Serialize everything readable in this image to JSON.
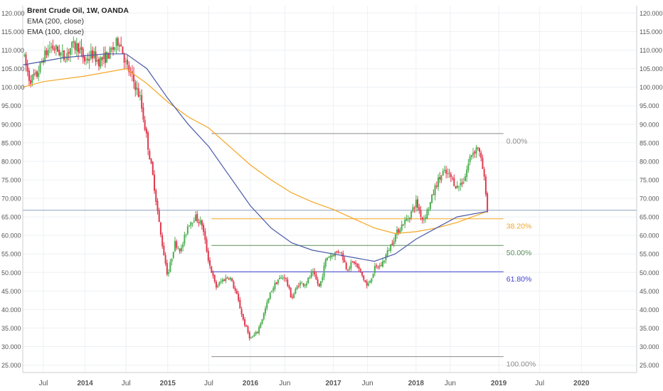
{
  "legend": {
    "title": "Brent Crude Oil, 1W, OANDA",
    "ema200": "EMA (200, close)",
    "ema100": "EMA (100, close)"
  },
  "chart_data": {
    "type": "candlestick",
    "title": "Brent Crude Oil, 1W, OANDA",
    "ylim": [
      23,
      122
    ],
    "yticks": [
      25,
      30,
      35,
      40,
      45,
      50,
      55,
      60,
      65,
      70,
      75,
      80,
      85,
      90,
      95,
      100,
      105,
      110,
      115,
      120
    ],
    "ytick_labels": [
      "25.000",
      "30.000",
      "35.000",
      "40.000",
      "45.000",
      "50.000",
      "55.000",
      "60.000",
      "65.000",
      "70.000",
      "75.000",
      "80.000",
      "85.000",
      "90.000",
      "95.000",
      "100.000",
      "105.000",
      "110.000",
      "115.000",
      "120.000"
    ],
    "xlim": [
      "2013-04-01",
      "2020-09-01"
    ],
    "xticks": [
      {
        "date": "2013-07-01",
        "label": "Jul"
      },
      {
        "date": "2014-01-01",
        "label": "2014"
      },
      {
        "date": "2014-07-01",
        "label": "Jul"
      },
      {
        "date": "2015-01-01",
        "label": "2015"
      },
      {
        "date": "2015-07-01",
        "label": "Jul"
      },
      {
        "date": "2016-01-01",
        "label": "2016"
      },
      {
        "date": "2016-06-01",
        "label": "Jun"
      },
      {
        "date": "2017-01-01",
        "label": "2017"
      },
      {
        "date": "2017-06-01",
        "label": "Jun"
      },
      {
        "date": "2018-01-01",
        "label": "2018"
      },
      {
        "date": "2018-06-01",
        "label": "Jun"
      },
      {
        "date": "2019-01-01",
        "label": "2019"
      },
      {
        "date": "2019-07-01",
        "label": "Jul"
      },
      {
        "date": "2020-01-01",
        "label": "2020"
      }
    ],
    "price_path": [
      [
        "2013-04-01",
        109
      ],
      [
        "2013-05-01",
        102
      ],
      [
        "2013-06-01",
        103
      ],
      [
        "2013-07-01",
        108
      ],
      [
        "2013-08-01",
        111
      ],
      [
        "2013-09-01",
        110
      ],
      [
        "2013-10-01",
        108
      ],
      [
        "2013-11-01",
        111
      ],
      [
        "2013-12-01",
        111
      ],
      [
        "2014-01-01",
        107
      ],
      [
        "2014-02-01",
        109
      ],
      [
        "2014-03-01",
        107
      ],
      [
        "2014-04-01",
        108
      ],
      [
        "2014-05-01",
        110
      ],
      [
        "2014-06-01",
        113
      ],
      [
        "2014-07-01",
        106
      ],
      [
        "2014-08-01",
        102
      ],
      [
        "2014-09-01",
        97
      ],
      [
        "2014-10-01",
        86
      ],
      [
        "2014-11-01",
        74
      ],
      [
        "2014-12-01",
        60
      ],
      [
        "2015-01-01",
        49
      ],
      [
        "2015-02-01",
        58
      ],
      [
        "2015-03-01",
        56
      ],
      [
        "2015-04-01",
        63
      ],
      [
        "2015-05-01",
        65
      ],
      [
        "2015-06-01",
        63
      ],
      [
        "2015-07-01",
        53
      ],
      [
        "2015-08-01",
        46
      ],
      [
        "2015-09-01",
        48
      ],
      [
        "2015-10-01",
        49
      ],
      [
        "2015-11-01",
        44
      ],
      [
        "2015-12-01",
        37
      ],
      [
        "2016-01-01",
        32
      ],
      [
        "2016-02-01",
        34
      ],
      [
        "2016-03-01",
        39
      ],
      [
        "2016-04-01",
        45
      ],
      [
        "2016-05-01",
        48
      ],
      [
        "2016-06-01",
        49
      ],
      [
        "2016-07-01",
        43
      ],
      [
        "2016-08-01",
        47
      ],
      [
        "2016-09-01",
        47
      ],
      [
        "2016-10-01",
        50
      ],
      [
        "2016-11-01",
        46
      ],
      [
        "2016-12-01",
        54
      ],
      [
        "2017-01-01",
        55
      ],
      [
        "2017-02-01",
        56
      ],
      [
        "2017-03-01",
        51
      ],
      [
        "2017-04-01",
        53
      ],
      [
        "2017-05-01",
        50
      ],
      [
        "2017-06-01",
        46
      ],
      [
        "2017-07-01",
        51
      ],
      [
        "2017-08-01",
        52
      ],
      [
        "2017-09-01",
        56
      ],
      [
        "2017-10-01",
        60
      ],
      [
        "2017-11-01",
        63
      ],
      [
        "2017-12-01",
        65
      ],
      [
        "2018-01-01",
        69
      ],
      [
        "2018-02-01",
        64
      ],
      [
        "2018-03-01",
        68
      ],
      [
        "2018-04-01",
        74
      ],
      [
        "2018-05-01",
        77
      ],
      [
        "2018-06-01",
        76
      ],
      [
        "2018-07-01",
        73
      ],
      [
        "2018-08-01",
        75
      ],
      [
        "2018-09-01",
        82
      ],
      [
        "2018-10-01",
        84
      ],
      [
        "2018-10-22",
        78
      ],
      [
        "2018-11-05",
        72
      ],
      [
        "2018-11-12",
        66.5
      ]
    ],
    "ema200": [
      [
        "2013-04-01",
        100
      ],
      [
        "2013-07-01",
        101.5
      ],
      [
        "2014-01-01",
        103
      ],
      [
        "2014-07-01",
        105
      ],
      [
        "2014-10-01",
        101
      ],
      [
        "2015-01-01",
        96
      ],
      [
        "2015-04-01",
        92
      ],
      [
        "2015-07-01",
        89
      ],
      [
        "2015-10-01",
        84
      ],
      [
        "2016-01-01",
        79
      ],
      [
        "2016-04-01",
        75
      ],
      [
        "2016-07-01",
        71.5
      ],
      [
        "2016-10-01",
        69
      ],
      [
        "2017-01-01",
        67
      ],
      [
        "2017-04-01",
        64.5
      ],
      [
        "2017-07-01",
        62
      ],
      [
        "2017-10-01",
        60.5
      ],
      [
        "2018-01-01",
        61
      ],
      [
        "2018-04-01",
        62
      ],
      [
        "2018-07-01",
        63.5
      ],
      [
        "2018-11-12",
        66.5
      ]
    ],
    "ema100": [
      [
        "2013-04-01",
        106
      ],
      [
        "2013-10-01",
        108
      ],
      [
        "2014-04-01",
        109
      ],
      [
        "2014-07-01",
        109
      ],
      [
        "2014-10-01",
        105
      ],
      [
        "2015-01-01",
        97
      ],
      [
        "2015-04-01",
        90
      ],
      [
        "2015-07-01",
        84
      ],
      [
        "2015-10-01",
        76
      ],
      [
        "2016-01-01",
        68
      ],
      [
        "2016-04-01",
        62
      ],
      [
        "2016-07-01",
        58
      ],
      [
        "2016-10-01",
        56
      ],
      [
        "2017-01-01",
        55
      ],
      [
        "2017-04-01",
        54
      ],
      [
        "2017-07-01",
        53
      ],
      [
        "2017-10-01",
        55
      ],
      [
        "2018-01-01",
        59
      ],
      [
        "2018-04-01",
        62
      ],
      [
        "2018-07-01",
        65
      ],
      [
        "2018-11-12",
        66.5
      ]
    ],
    "fibonacci": {
      "start": "2015-07-13",
      "end": "2019-01-22",
      "levels": [
        {
          "label": "0.00%",
          "value": 87.5,
          "color": "#8c8c8c"
        },
        {
          "label": "38.20%",
          "value": 64.5,
          "color": "#f5a623"
        },
        {
          "label": "50.00%",
          "value": 57.3,
          "color": "#5b8f5b"
        },
        {
          "label": "61.80%",
          "value": 50.2,
          "color": "#3f3fcf"
        },
        {
          "label": "100.00%",
          "value": 27.3,
          "color": "#8c8c8c"
        }
      ]
    },
    "current_price_line": 66.8,
    "colors": {
      "up": "#4caf50",
      "down": "#e0394d",
      "ema200": "#f5a623",
      "ema100": "#4a5aa8",
      "price_line": "#8da0c0"
    },
    "grid": true
  }
}
